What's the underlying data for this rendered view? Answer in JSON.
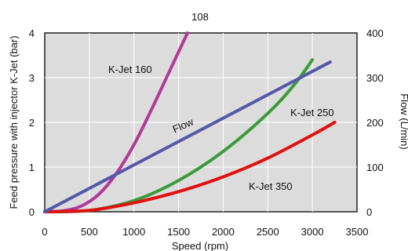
{
  "page_number": "108",
  "chart_data": {
    "type": "line",
    "xlabel": "Speed (rpm)",
    "ylabel_left": "Feed pressure with injector K-Jet (bar)",
    "ylabel_right": "Flow (L/min)",
    "xlim": [
      0,
      3500
    ],
    "ylim_left": [
      0,
      4
    ],
    "ylim_right": [
      0,
      400
    ],
    "x_ticks": [
      "0",
      "500",
      "1000",
      "1500",
      "2000",
      "2500",
      "3000",
      "3500"
    ],
    "y_ticks_left": [
      "0",
      "1",
      "2",
      "3",
      "4"
    ],
    "y_ticks_right": [
      "0",
      "100",
      "200",
      "300",
      "400"
    ],
    "grid": true,
    "plot_background": "#dcdcdc",
    "series": [
      {
        "name": "K-Jet 160",
        "axis": "left",
        "color": "#b03a9a",
        "x": [
          0,
          200,
          400,
          600,
          800,
          1000,
          1200,
          1400,
          1600
        ],
        "y": [
          0.0,
          0.02,
          0.12,
          0.38,
          0.85,
          1.5,
          2.3,
          3.15,
          4.0
        ]
      },
      {
        "name": "K-Jet 250",
        "axis": "left",
        "color": "#3a9a3a",
        "x": [
          0,
          500,
          1000,
          1500,
          2000,
          2500,
          2800,
          3000
        ],
        "y": [
          0.0,
          0.03,
          0.25,
          0.7,
          1.35,
          2.2,
          2.85,
          3.4
        ]
      },
      {
        "name": "K-Jet 350",
        "axis": "left",
        "color": "#e01010",
        "x": [
          0,
          500,
          1000,
          1500,
          2000,
          2500,
          3000,
          3250
        ],
        "y": [
          0.0,
          0.03,
          0.2,
          0.45,
          0.78,
          1.2,
          1.72,
          2.0
        ]
      },
      {
        "name": "Flow",
        "axis": "right",
        "color": "#5458a8",
        "x": [
          0,
          3200
        ],
        "y": [
          0,
          335
        ]
      }
    ]
  }
}
